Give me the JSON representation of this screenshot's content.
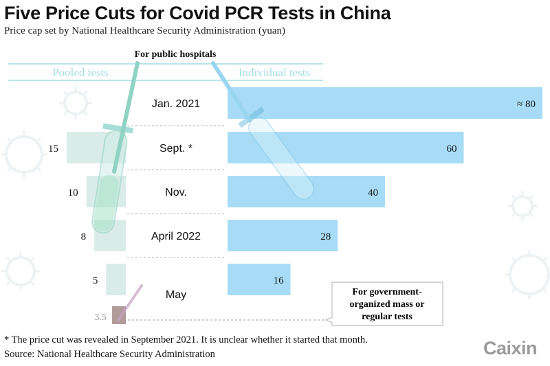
{
  "title": "Five Price Cuts for Covid PCR Tests in China",
  "subtitle": "Price cap set by National Healthcare Security Administration (yuan)",
  "section_label": "For public hospitals",
  "footnote": "* The price cut was revealed in September 2021. It is unclear whether it started that month.",
  "source": "Source: National Healthcare Security Administration",
  "logo": "Caixin",
  "callout_lines": [
    "For government-",
    "organized mass or",
    "regular tests"
  ],
  "colors": {
    "individual_bar": "#a8dcf6",
    "pooled_bar": "#d9ece8",
    "mass_bar": "#b39a9a",
    "header_line": "#8ed6df",
    "header_text": "#a6dde4",
    "divider": "#b5b5b5"
  },
  "chart_data": {
    "type": "bar",
    "categories": [
      "Jan. 2021",
      "Sept. *",
      "Nov.",
      "April 2022",
      "May"
    ],
    "series": [
      {
        "name": "Pooled tests",
        "values": [
          null,
          15,
          10,
          8,
          5
        ]
      },
      {
        "name": "Individual tests",
        "values": [
          80,
          60,
          40,
          28,
          16
        ]
      }
    ],
    "individual_labels": [
      "≈ 80",
      "60",
      "40",
      "28",
      "16"
    ],
    "pooled_labels": [
      "",
      "15",
      "10",
      "8",
      "5"
    ],
    "mass_test": {
      "value": 3.5,
      "label": "3.5"
    }
  }
}
